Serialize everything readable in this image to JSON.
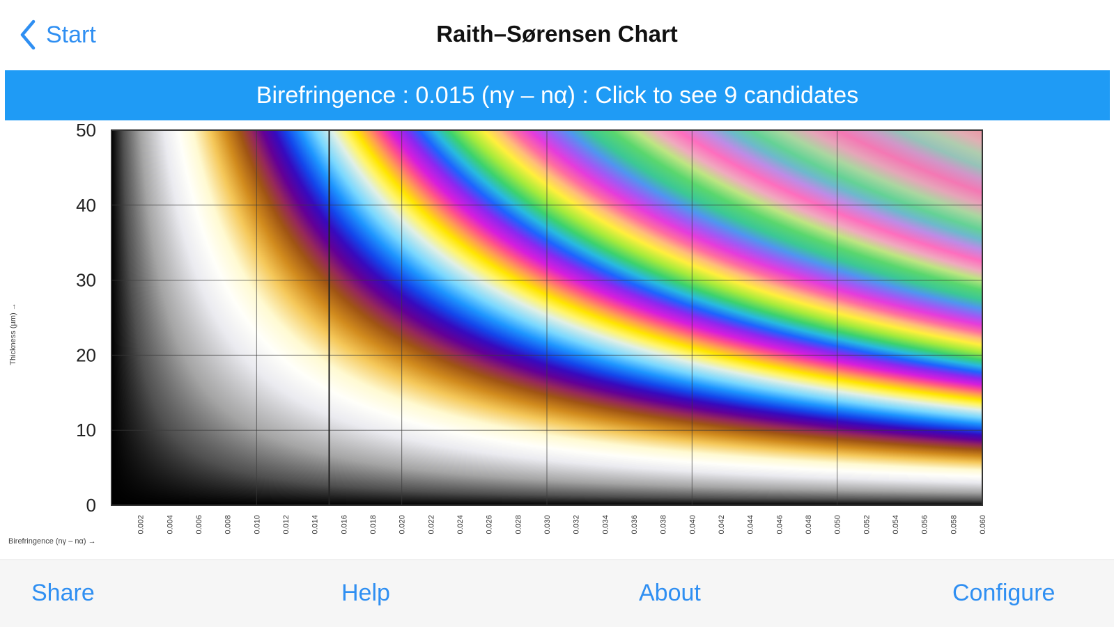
{
  "nav": {
    "back_label": "Start",
    "title": "Raith–Sørensen Chart"
  },
  "banner": {
    "text": "Birefringence : 0.015 (nγ – nα) : Click to see 9 candidates"
  },
  "chart_data": {
    "type": "heatmap",
    "title": "",
    "xlabel": "Birefringence (nγ – nα) →",
    "ylabel": "Thickness (µm) →",
    "xlim": [
      0.0,
      0.06
    ],
    "ylim": [
      0,
      50
    ],
    "x_ticks": [
      "0.002",
      "0.004",
      "0.006",
      "0.008",
      "0.010",
      "0.012",
      "0.014",
      "0.016",
      "0.018",
      "0.020",
      "0.022",
      "0.024",
      "0.026",
      "0.028",
      "0.030",
      "0.032",
      "0.034",
      "0.036",
      "0.038",
      "0.040",
      "0.042",
      "0.044",
      "0.046",
      "0.048",
      "0.050",
      "0.052",
      "0.054",
      "0.056",
      "0.058",
      "0.060"
    ],
    "y_ticks": [
      "0",
      "10",
      "20",
      "30",
      "40",
      "50"
    ],
    "x_grid": [
      0.01,
      0.02,
      0.03,
      0.04,
      0.05
    ],
    "y_grid": [
      10,
      20,
      30,
      40
    ],
    "grid": true,
    "selected_birefringence": 0.015,
    "colormap": "Michel-Lévy interference colours (retardation = birefringence × thickness)"
  },
  "toolbar": {
    "share": "Share",
    "help": "Help",
    "about": "About",
    "configure": "Configure"
  },
  "colors": {
    "accent": "#2f8ff2",
    "banner": "#1f9bf5"
  },
  "icons": {
    "back": "chevron-left-icon"
  }
}
